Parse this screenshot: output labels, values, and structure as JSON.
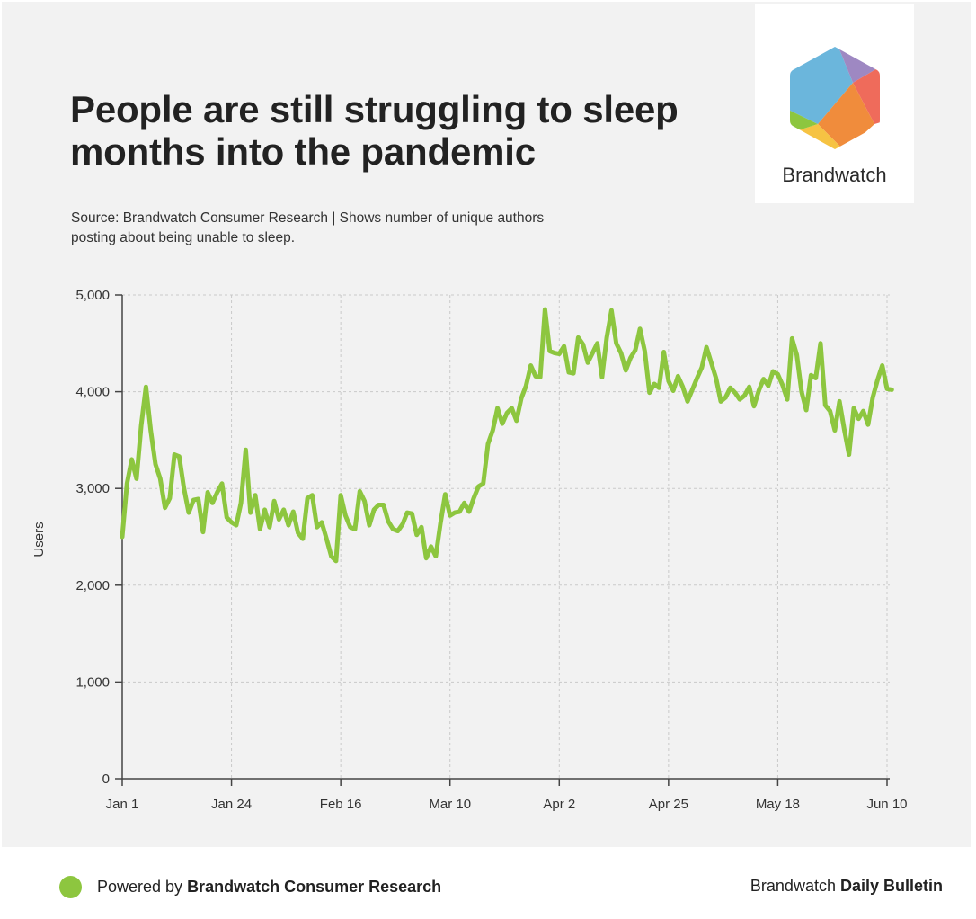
{
  "header": {
    "title": "People are still struggling to sleep months into the pandemic",
    "source": "Source: Brandwatch Consumer Research | Shows number of unique authors posting about being unable to sleep."
  },
  "logo": {
    "text": "Brandwatch",
    "icon": "brandwatch-hexagon-logo",
    "colors": [
      "#6bb6dc",
      "#9e88c2",
      "#ef6b5b",
      "#f08c3c",
      "#f6c343",
      "#8dc63f"
    ]
  },
  "footer": {
    "left_prefix": "Powered by ",
    "left_bold": "Brandwatch Consumer Research",
    "right_prefix": "Brandwatch ",
    "right_bold": "Daily Bulletin",
    "dot_color": "#8dc63f"
  },
  "chart_data": {
    "type": "line",
    "title": "People are still struggling to sleep months into the pandemic",
    "xlabel": "",
    "ylabel": "Users",
    "ylim": [
      0,
      5000
    ],
    "yticks": [
      0,
      1000,
      2000,
      3000,
      4000,
      5000
    ],
    "ytick_labels": [
      "0",
      "1,000",
      "2,000",
      "3,000",
      "4,000",
      "5,000"
    ],
    "x_start": "Jan 1",
    "x_end": "Jun 11",
    "xtick_labels": [
      "Jan 1",
      "Jan 24",
      "Feb 16",
      "Mar 10",
      "Apr 2",
      "Apr 25",
      "May 18",
      "Jun 10"
    ],
    "xtick_days": [
      0,
      23,
      46,
      69,
      92,
      115,
      138,
      161
    ],
    "grid": true,
    "line_color": "#8dc63f",
    "series": [
      {
        "values": [
          2500,
          3050,
          3300,
          3100,
          3650,
          4050,
          3600,
          3250,
          3100,
          2800,
          2900,
          3350,
          3330,
          3000,
          2750,
          2880,
          2890,
          2550,
          2960,
          2850,
          2960,
          3050,
          2700,
          2650,
          2620,
          2850,
          3400,
          2750,
          2930,
          2580,
          2780,
          2600,
          2870,
          2680,
          2780,
          2620,
          2760,
          2540,
          2480,
          2900,
          2930,
          2600,
          2650,
          2480,
          2300,
          2250,
          2930,
          2720,
          2600,
          2580,
          2970,
          2870,
          2620,
          2780,
          2830,
          2830,
          2660,
          2580,
          2560,
          2630,
          2750,
          2740,
          2520,
          2600,
          2280,
          2400,
          2300,
          2640,
          2940,
          2720,
          2750,
          2760,
          2850,
          2760,
          2900,
          3020,
          3050,
          3460,
          3600,
          3830,
          3670,
          3780,
          3830,
          3700,
          3930,
          4060,
          4270,
          4160,
          4150,
          4850,
          4420,
          4400,
          4390,
          4470,
          4200,
          4190,
          4560,
          4490,
          4300,
          4400,
          4500,
          4150,
          4560,
          4840,
          4500,
          4400,
          4220,
          4350,
          4430,
          4650,
          4420,
          3990,
          4080,
          4040,
          4410,
          4110,
          4010,
          4160,
          4050,
          3900,
          4020,
          4140,
          4250,
          4460,
          4300,
          4140,
          3900,
          3940,
          4040,
          3990,
          3920,
          3960,
          4050,
          3850,
          4010,
          4130,
          4060,
          4210,
          4180,
          4070,
          3920,
          4550,
          4380,
          4000,
          3810,
          4170,
          4140,
          4500,
          3860,
          3800,
          3600,
          3900,
          3610,
          3350,
          3830,
          3720,
          3800,
          3660,
          3940,
          4120,
          4270,
          4030,
          4020
        ]
      }
    ]
  }
}
